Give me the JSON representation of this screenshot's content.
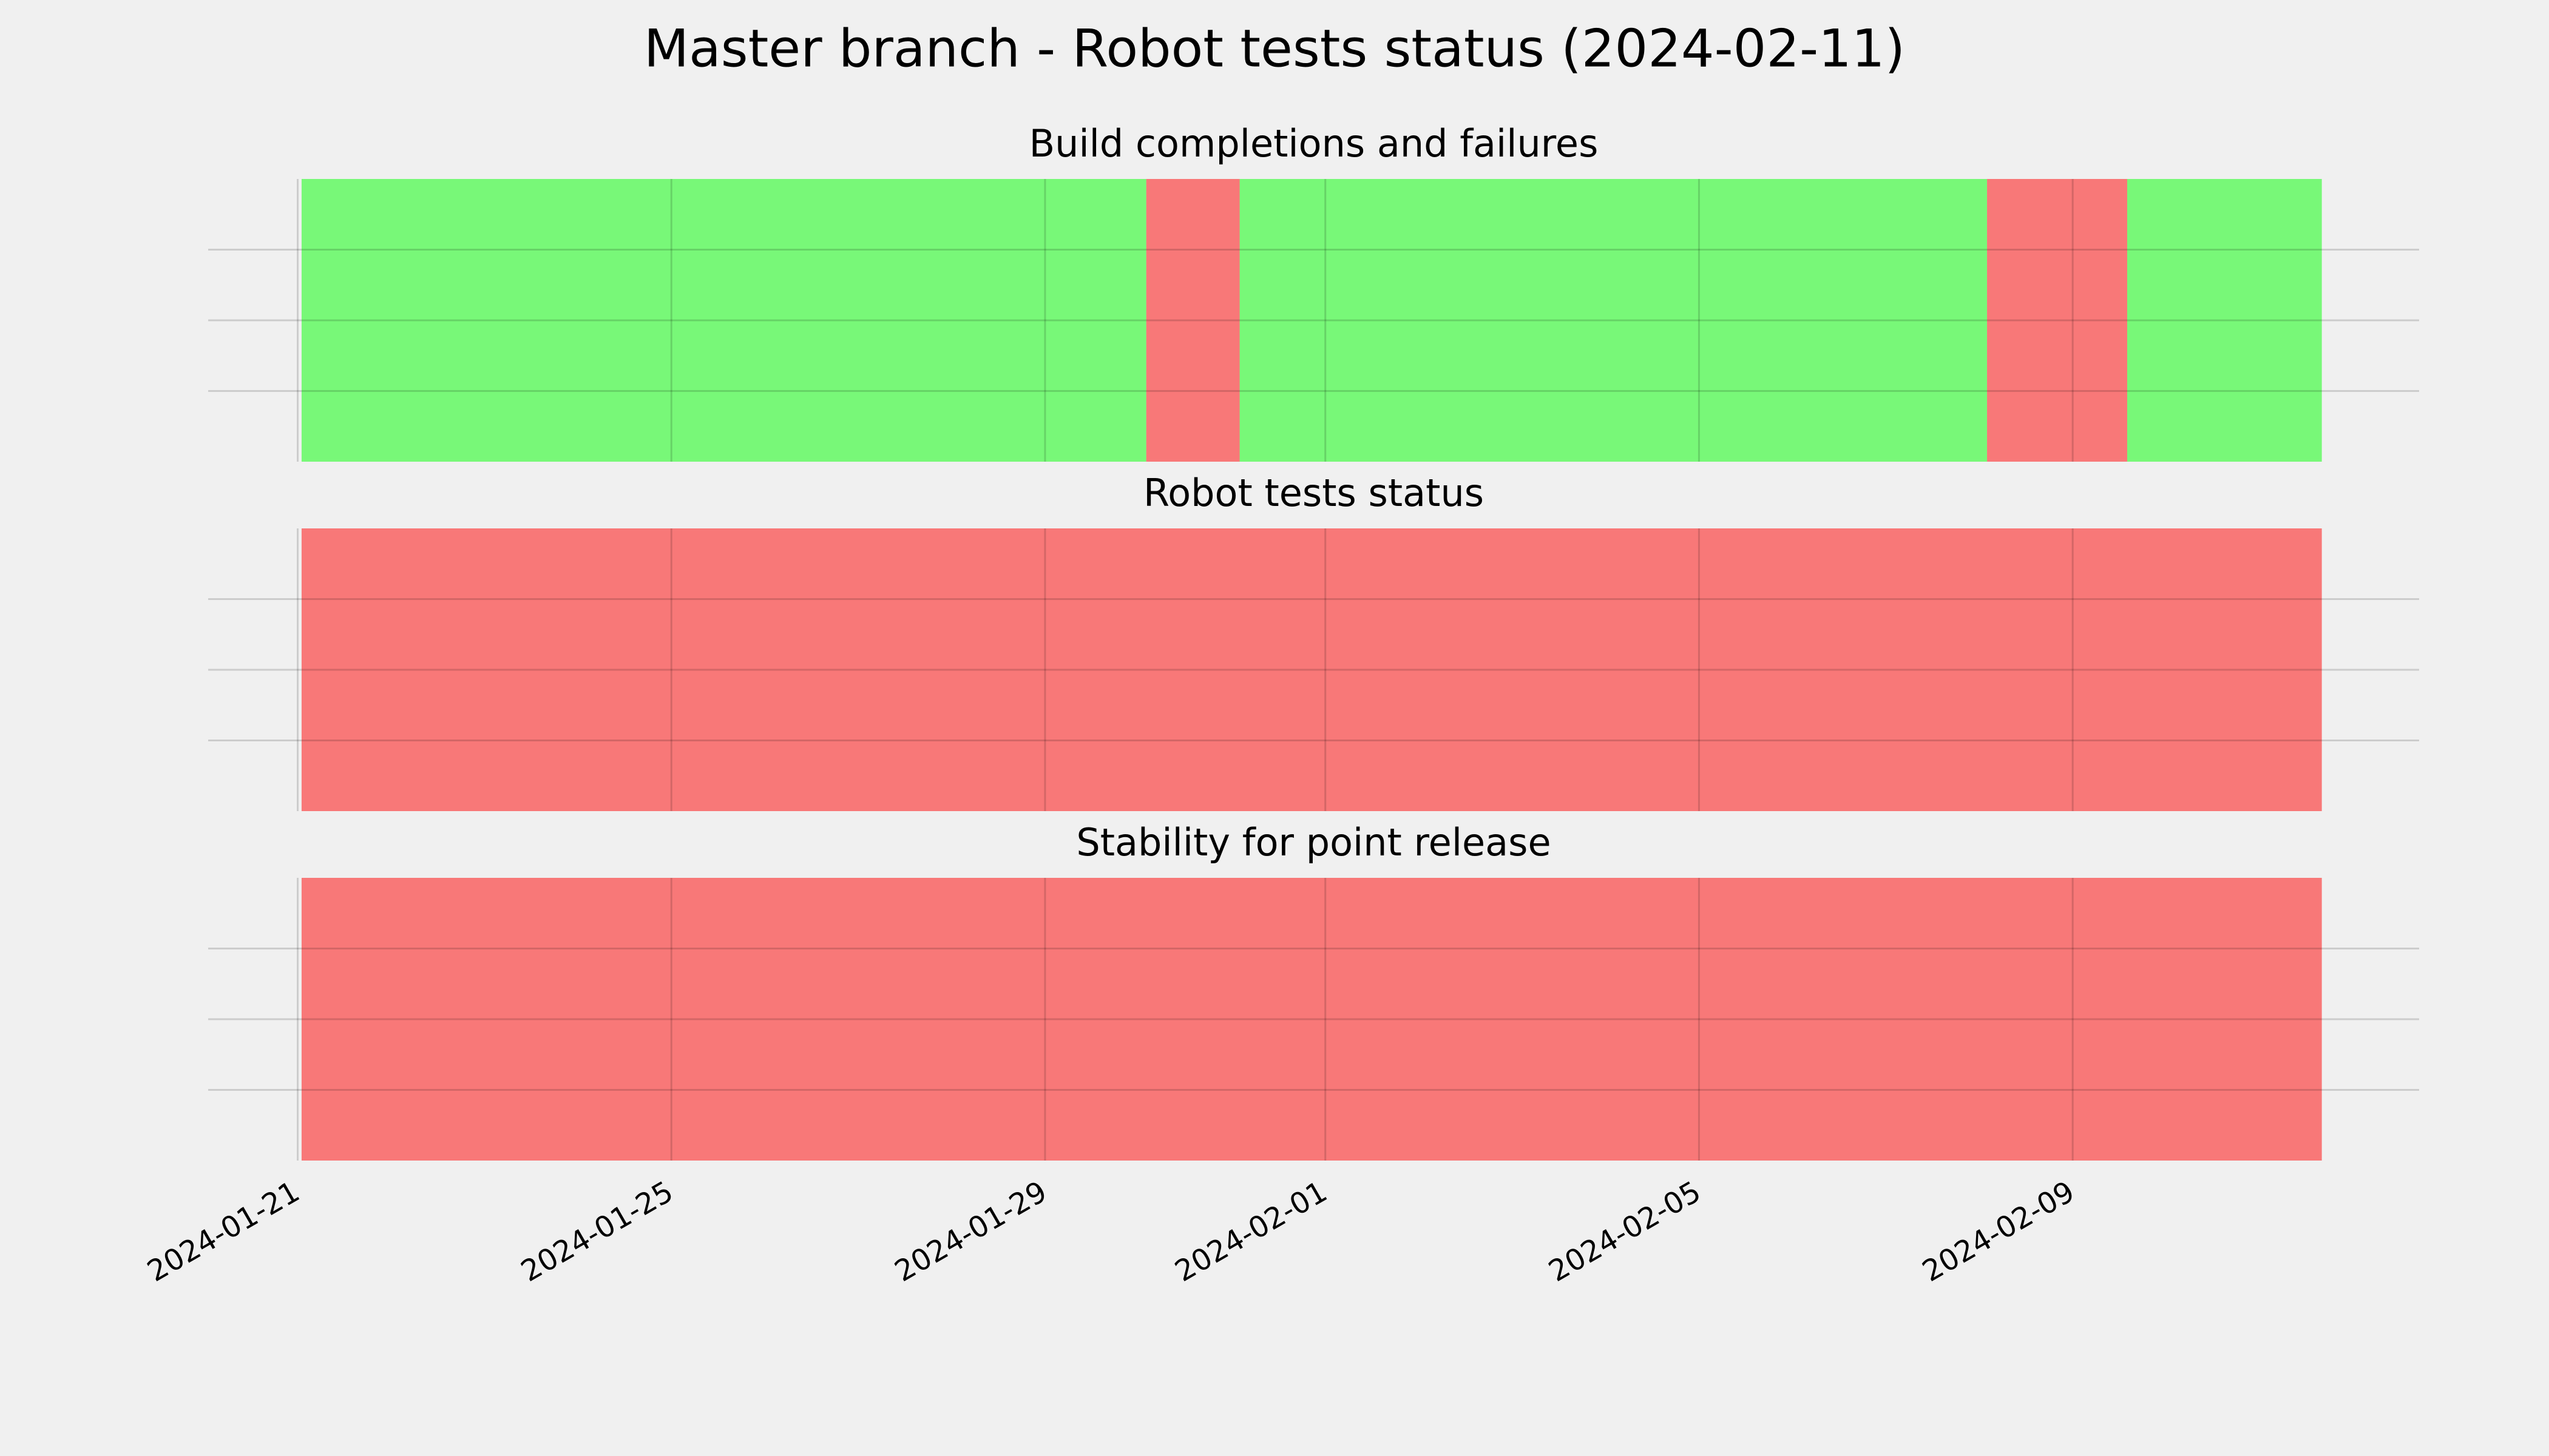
{
  "title": "Master branch - Robot tests status (2024-02-11)",
  "chart_data": [
    {
      "type": "span",
      "title": "Build completions and failures",
      "spans": [
        {
          "start": "2024-01-21T01:00",
          "end": "2024-01-30T02:00",
          "color": "#00ff00"
        },
        {
          "start": "2024-01-30T02:00",
          "end": "2024-01-31T02:00",
          "color": "#ff0000"
        },
        {
          "start": "2024-01-31T02:00",
          "end": "2024-02-08T02:00",
          "color": "#00ff00"
        },
        {
          "start": "2024-02-08T02:00",
          "end": "2024-02-09T14:00",
          "color": "#ff0000"
        },
        {
          "start": "2024-02-09T14:00",
          "end": "2024-02-11T16:00",
          "color": "#00ff00"
        }
      ],
      "xlim": [
        "2024-01-20T01:00",
        "2024-02-12T17:00"
      ],
      "xticks": [
        "2024-01-21",
        "2024-01-25",
        "2024-01-29",
        "2024-02-01",
        "2024-02-05",
        "2024-02-09"
      ],
      "ylim": [
        0,
        1
      ],
      "yticks": [
        0.25,
        0.5,
        0.75
      ],
      "grid": true
    },
    {
      "type": "span",
      "title": "Robot tests status",
      "spans": [
        {
          "start": "2024-01-21T01:00",
          "end": "2024-02-11T16:00",
          "color": "#ff0000"
        }
      ],
      "xlim": [
        "2024-01-20T01:00",
        "2024-02-12T17:00"
      ],
      "xticks": [
        "2024-01-21",
        "2024-01-25",
        "2024-01-29",
        "2024-02-01",
        "2024-02-05",
        "2024-02-09"
      ],
      "ylim": [
        0,
        1
      ],
      "yticks": [
        0.25,
        0.5,
        0.75
      ],
      "grid": true
    },
    {
      "type": "span",
      "title": "Stability for point release",
      "spans": [
        {
          "start": "2024-01-21T01:00",
          "end": "2024-02-11T16:00",
          "color": "#ff0000"
        }
      ],
      "xlim": [
        "2024-01-20T01:00",
        "2024-02-12T17:00"
      ],
      "xticks": [
        "2024-01-21",
        "2024-01-25",
        "2024-01-29",
        "2024-02-01",
        "2024-02-05",
        "2024-02-09"
      ],
      "ylim": [
        0,
        1
      ],
      "yticks": [
        0.25,
        0.5,
        0.75
      ],
      "grid": true,
      "xtick_labels": true
    }
  ]
}
